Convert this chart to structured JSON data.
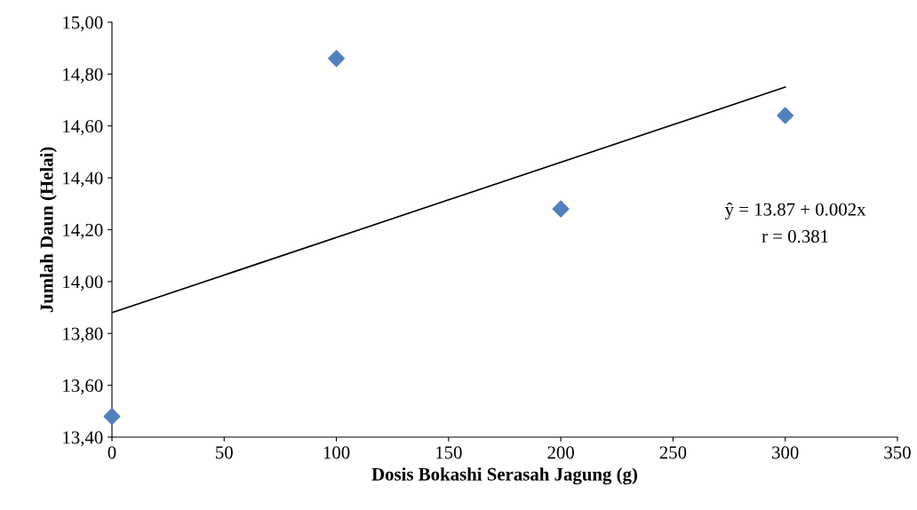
{
  "chart_data": {
    "type": "scatter",
    "xlabel": "Dosis Bokashi Serasah Jagung (g)",
    "ylabel": "Jumlah Daun (Helai)",
    "series": [
      {
        "color": "#4f81bd",
        "x": [
          0,
          100,
          200,
          300
        ],
        "values": [
          13.48,
          14.86,
          14.28,
          14.64
        ],
        "marker": "diamond"
      },
      {
        "type": "line",
        "color": "#000000",
        "x": [
          0,
          300
        ],
        "values": [
          13.88,
          14.75
        ],
        "marker": "none",
        "line_style": "solid"
      }
    ],
    "xlim": [
      0,
      350
    ],
    "xticks": [
      0,
      50,
      100,
      150,
      200,
      250,
      300,
      350
    ],
    "ylim": [
      13.4,
      15.0
    ],
    "yticks": [
      {
        "value": 13.4,
        "label": "13,40"
      },
      {
        "value": 13.6,
        "label": "13,60"
      },
      {
        "value": 13.8,
        "label": "13,80"
      },
      {
        "value": 14.0,
        "label": "14,00"
      },
      {
        "value": 14.2,
        "label": "14,20"
      },
      {
        "value": 14.4,
        "label": "14,40"
      },
      {
        "value": 14.6,
        "label": "14,60"
      },
      {
        "value": 14.8,
        "label": "14,80"
      },
      {
        "value": 15.0,
        "label": "15,00"
      }
    ],
    "grid": false,
    "legend": false,
    "annotations": [
      "ŷ = 13.87 + 0.002x",
      "r = 0.381"
    ]
  }
}
